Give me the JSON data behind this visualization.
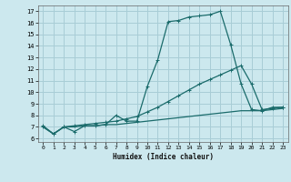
{
  "title": "",
  "xlabel": "Humidex (Indice chaleur)",
  "bg_color": "#cce8ee",
  "grid_color": "#a8cdd6",
  "line_color": "#1a6b6b",
  "xlim": [
    -0.5,
    23.5
  ],
  "ylim": [
    5.7,
    17.5
  ],
  "xticks": [
    0,
    1,
    2,
    3,
    4,
    5,
    6,
    7,
    8,
    9,
    10,
    11,
    12,
    13,
    14,
    15,
    16,
    17,
    18,
    19,
    20,
    21,
    22,
    23
  ],
  "yticks": [
    6,
    7,
    8,
    9,
    10,
    11,
    12,
    13,
    14,
    15,
    16,
    17
  ],
  "line1_x": [
    0,
    1,
    2,
    3,
    4,
    5,
    6,
    7,
    8,
    9,
    10,
    11,
    12,
    13,
    14,
    15,
    16,
    17,
    18,
    19,
    20,
    21,
    22,
    23
  ],
  "line1_y": [
    7.1,
    6.4,
    7.0,
    6.6,
    7.1,
    7.1,
    7.2,
    8.0,
    7.5,
    7.5,
    10.5,
    12.8,
    16.1,
    16.2,
    16.5,
    16.6,
    16.7,
    17.0,
    14.1,
    10.7,
    8.5,
    8.4,
    8.7,
    8.7
  ],
  "line2_x": [
    0,
    1,
    2,
    3,
    4,
    5,
    6,
    7,
    8,
    9,
    10,
    11,
    12,
    13,
    14,
    15,
    16,
    17,
    18,
    19,
    20,
    21,
    22,
    23
  ],
  "line2_y": [
    7.0,
    6.4,
    7.0,
    7.1,
    7.2,
    7.3,
    7.4,
    7.5,
    7.7,
    7.9,
    8.3,
    8.7,
    9.2,
    9.7,
    10.2,
    10.7,
    11.1,
    11.5,
    11.9,
    12.3,
    10.7,
    8.5,
    8.6,
    8.7
  ],
  "line3_x": [
    0,
    1,
    2,
    3,
    4,
    5,
    6,
    7,
    8,
    9,
    10,
    11,
    12,
    13,
    14,
    15,
    16,
    17,
    18,
    19,
    20,
    21,
    22,
    23
  ],
  "line3_y": [
    7.0,
    6.4,
    7.0,
    7.0,
    7.1,
    7.1,
    7.2,
    7.2,
    7.3,
    7.4,
    7.5,
    7.6,
    7.7,
    7.8,
    7.9,
    8.0,
    8.1,
    8.2,
    8.3,
    8.4,
    8.4,
    8.4,
    8.5,
    8.6
  ]
}
